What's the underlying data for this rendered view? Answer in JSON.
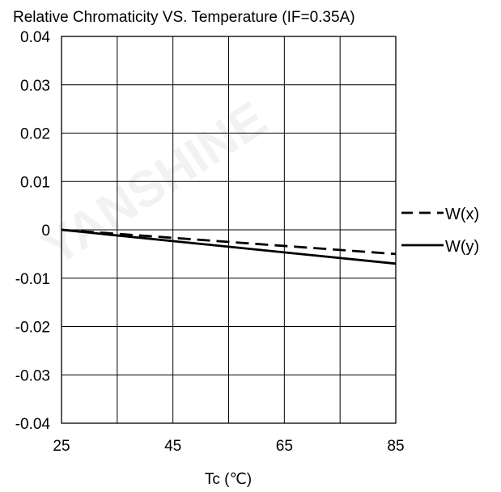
{
  "chart_data": {
    "type": "line",
    "title": "Relative Chromaticity VS. Temperature (IF=0.35A)",
    "xlabel": "Tc (℃)",
    "ylabel": "",
    "xlim": [
      25,
      85
    ],
    "ylim": [
      -0.04,
      0.04
    ],
    "x_ticks": [
      25,
      45,
      65,
      85
    ],
    "x_tick_labels": [
      "25",
      "45",
      "65",
      "85"
    ],
    "x_grid": [
      25,
      35,
      45,
      55,
      65,
      75,
      85
    ],
    "y_ticks": [
      0.04,
      0.03,
      0.02,
      0.01,
      0,
      -0.01,
      -0.02,
      -0.03,
      -0.04
    ],
    "y_tick_labels": [
      "0.04",
      "0.03",
      "0.02",
      "0.01",
      "0",
      "-0.01",
      "-0.02",
      "-0.03",
      "-0.04"
    ],
    "grid": true,
    "legend_position": "right",
    "series": [
      {
        "name": "W(x)",
        "style": "dashed",
        "x": [
          25,
          85
        ],
        "y": [
          0,
          -0.005
        ]
      },
      {
        "name": "W(y)",
        "style": "solid",
        "x": [
          25,
          85
        ],
        "y": [
          0,
          -0.007
        ]
      }
    ]
  }
}
